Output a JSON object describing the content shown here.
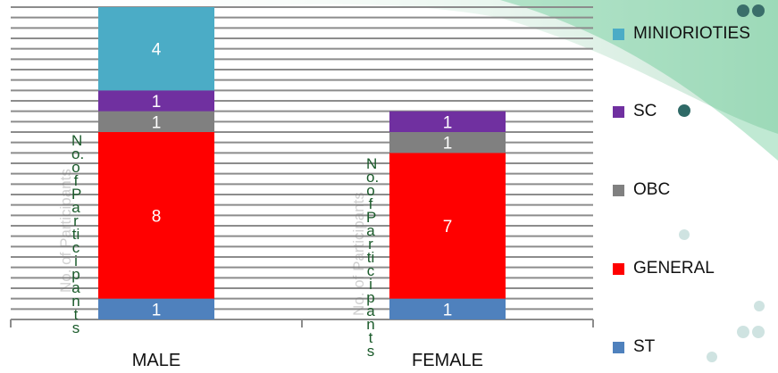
{
  "chart_data": {
    "type": "bar",
    "stacked": true,
    "categories": [
      "MALE",
      "FEMALE"
    ],
    "series": [
      {
        "name": "ST",
        "values": [
          1,
          1
        ],
        "color": "#4f81bd"
      },
      {
        "name": "GENERAL",
        "values": [
          8,
          7
        ],
        "color": "#ff0000"
      },
      {
        "name": "OBC",
        "values": [
          1,
          1
        ],
        "color": "#808080"
      },
      {
        "name": "SC",
        "values": [
          1,
          1
        ],
        "color": "#7030a0"
      },
      {
        "name": "MINIORIOTIES",
        "values": [
          4,
          0
        ],
        "color": "#4bacc6"
      }
    ],
    "legend_order": [
      "MINIORIOTIES",
      "SC",
      "OBC",
      "GENERAL",
      "ST"
    ],
    "ylim": [
      0,
      15
    ],
    "grid": true,
    "legend": "right",
    "ylabel": "No. of Participants"
  }
}
